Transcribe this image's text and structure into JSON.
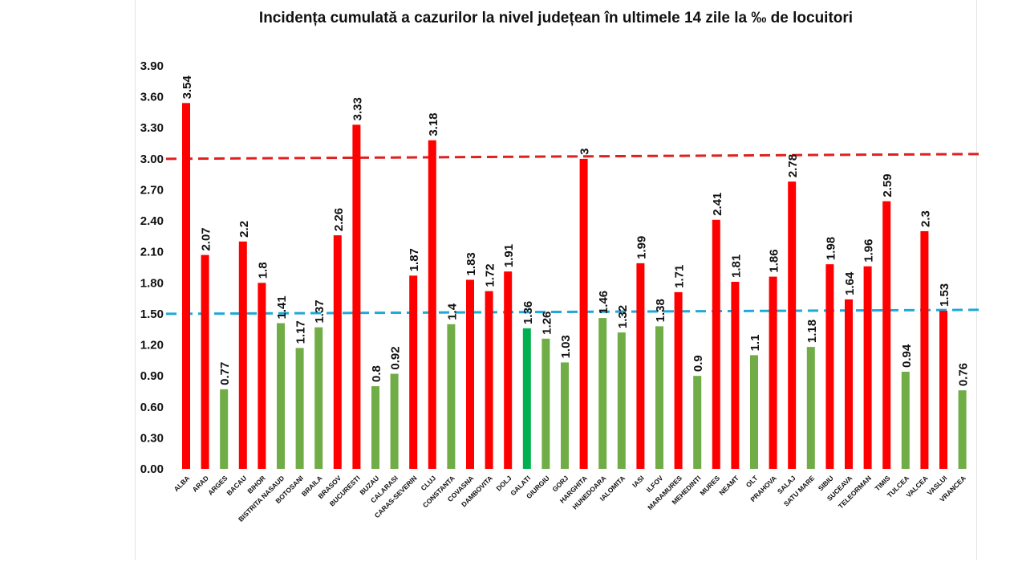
{
  "chart_data": {
    "type": "bar",
    "title": "Incidența cumulată a cazurilor la nivel județean în ultimele 14 zile la ‰ de locuitori",
    "xlabel": "",
    "ylabel": "",
    "ylim": [
      0,
      3.9
    ],
    "yticks": [
      "0.00",
      "0.30",
      "0.60",
      "0.90",
      "1.20",
      "1.50",
      "1.80",
      "2.10",
      "2.40",
      "2.70",
      "3.00",
      "3.30",
      "3.60",
      "3.90"
    ],
    "grid": false,
    "categories": [
      "ALBA",
      "ARAD",
      "ARGES",
      "BACAU",
      "BIHOR",
      "BISTRITA NASAUD",
      "BOTOSANI",
      "BRAILA",
      "BRASOV",
      "BUCURESTI",
      "BUZAU",
      "CALARASI",
      "CARAS-SEVERIN",
      "CLUJ",
      "CONSTANTA",
      "COVASNA",
      "DAMBOVITA",
      "DOLJ",
      "GALATI",
      "GIURGIU",
      "GORJ",
      "HARGHITA",
      "HUNEDOARA",
      "IALOMITA",
      "IASI",
      "ILFOV",
      "MARAMURES",
      "MEHEDINTI",
      "MURES",
      "NEAMT",
      "OLT",
      "PRAHOVA",
      "SALAJ",
      "SATU MARE",
      "SIBIU",
      "SUCEAVA",
      "TELEORMAN",
      "TIMIS",
      "TULCEA",
      "VALCEA",
      "VASLUI",
      "VRANCEA"
    ],
    "values": [
      3.54,
      2.07,
      0.77,
      2.2,
      1.8,
      1.41,
      1.17,
      1.37,
      2.26,
      3.33,
      0.8,
      0.92,
      1.87,
      3.18,
      1.4,
      1.83,
      1.72,
      1.91,
      1.36,
      1.26,
      1.03,
      3,
      1.46,
      1.32,
      1.99,
      1.38,
      1.71,
      0.9,
      2.41,
      1.81,
      1.1,
      1.86,
      2.78,
      1.18,
      1.98,
      1.64,
      1.96,
      2.59,
      0.94,
      2.3,
      1.53,
      0.76
    ],
    "value_labels": [
      "3.54",
      "2.07",
      "0.77",
      "2.2",
      "1.8",
      "1.41",
      "1.17",
      "1.37",
      "2.26",
      "3.33",
      "0.8",
      "0.92",
      "1.87",
      "3.18",
      "1.4",
      "1.83",
      "1.72",
      "1.91",
      "1.36",
      "1.26",
      "1.03",
      "3",
      "1.46",
      "1.32",
      "1.99",
      "1.38",
      "1.71",
      "0.9",
      "2.41",
      "1.81",
      "1.1",
      "1.86",
      "2.78",
      "1.18",
      "1.98",
      "1.64",
      "1.96",
      "2.59",
      "0.94",
      "2.3",
      "1.53",
      "0.76"
    ],
    "bar_colors": [
      "red",
      "red",
      "green",
      "red",
      "red",
      "green",
      "green",
      "green",
      "red",
      "red",
      "green",
      "green",
      "red",
      "red",
      "green",
      "red",
      "red",
      "red",
      "darkgreen",
      "green",
      "green",
      "red",
      "green",
      "green",
      "red",
      "green",
      "red",
      "green",
      "red",
      "red",
      "green",
      "red",
      "red",
      "green",
      "red",
      "red",
      "red",
      "red",
      "green",
      "red",
      "red",
      "green"
    ],
    "colors": {
      "red": "#ff0000",
      "green": "#70ad47",
      "darkgreen": "#00b050"
    },
    "reference_lines": [
      {
        "value": 3.0,
        "color": "#e02020",
        "style": "dashed"
      },
      {
        "value": 1.5,
        "color": "#1fa8d8",
        "style": "dashed"
      }
    ]
  }
}
